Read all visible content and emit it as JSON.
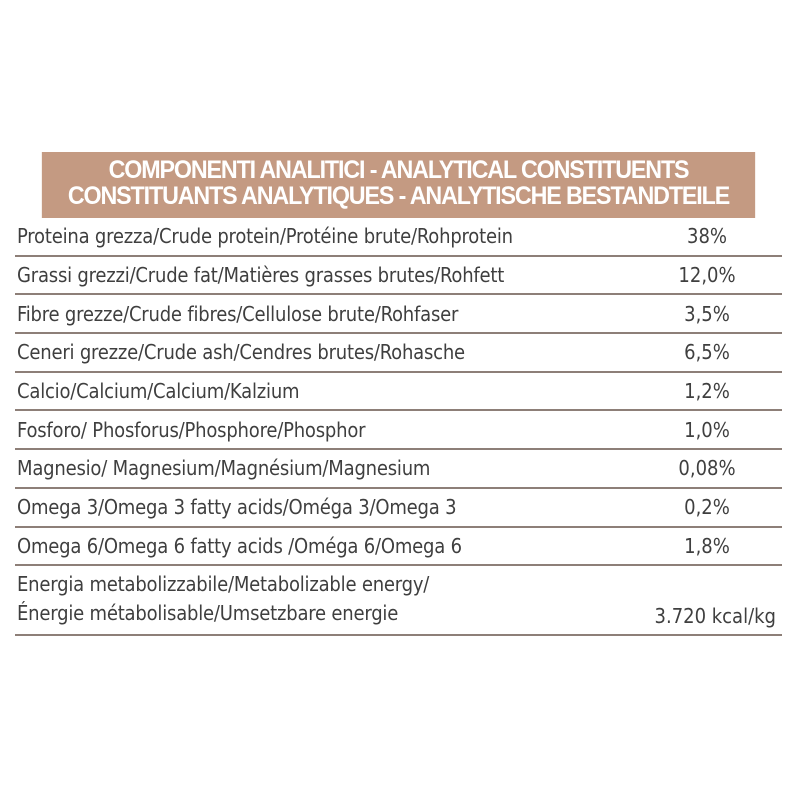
{
  "header": {
    "line1": "COMPONENTI ANALITICI - ANALYTICAL CONSTITUENTS",
    "line2": "CONSTITUANTS ANALYTIQUES - ANALYTISCHE BESTANDTEILE"
  },
  "rows": [
    {
      "label": "Proteina grezza/Crude protein/Protéine brute/Rohprotein",
      "value": "38%"
    },
    {
      "label": "Grassi grezzi/Crude fat/Matières grasses brutes/Rohfett",
      "value": "12,0%"
    },
    {
      "label": "Fibre grezze/Crude fibres/Cellulose brute/Rohfaser",
      "value": "3,5%"
    },
    {
      "label": "Ceneri grezze/Crude ash/Cendres brutes/Rohasche",
      "value": "6,5%"
    },
    {
      "label": "Calcio/Calcium/Calcium/Kalzium",
      "value": "1,2%"
    },
    {
      "label": "Fosforo/ Phosforus/Phosphore/Phosphor",
      "value": "1,0%"
    },
    {
      "label": "Magnesio/ Magnesium/Magnésium/Magnesium",
      "value": "0,08%"
    },
    {
      "label": "Omega 3/Omega 3 fatty acids/Oméga 3/Omega 3",
      "value": "0,2%"
    },
    {
      "label": "Omega 6/Omega 6 fatty acids /Oméga 6/Omega 6",
      "value": "1,8%"
    }
  ],
  "energy": {
    "label_line1": "Energia metabolizzabile/Metabolizable energy/",
    "label_line2": "Énergie métabolisable/Umsetzbare energie",
    "value": "3.720 kcal/kg"
  }
}
